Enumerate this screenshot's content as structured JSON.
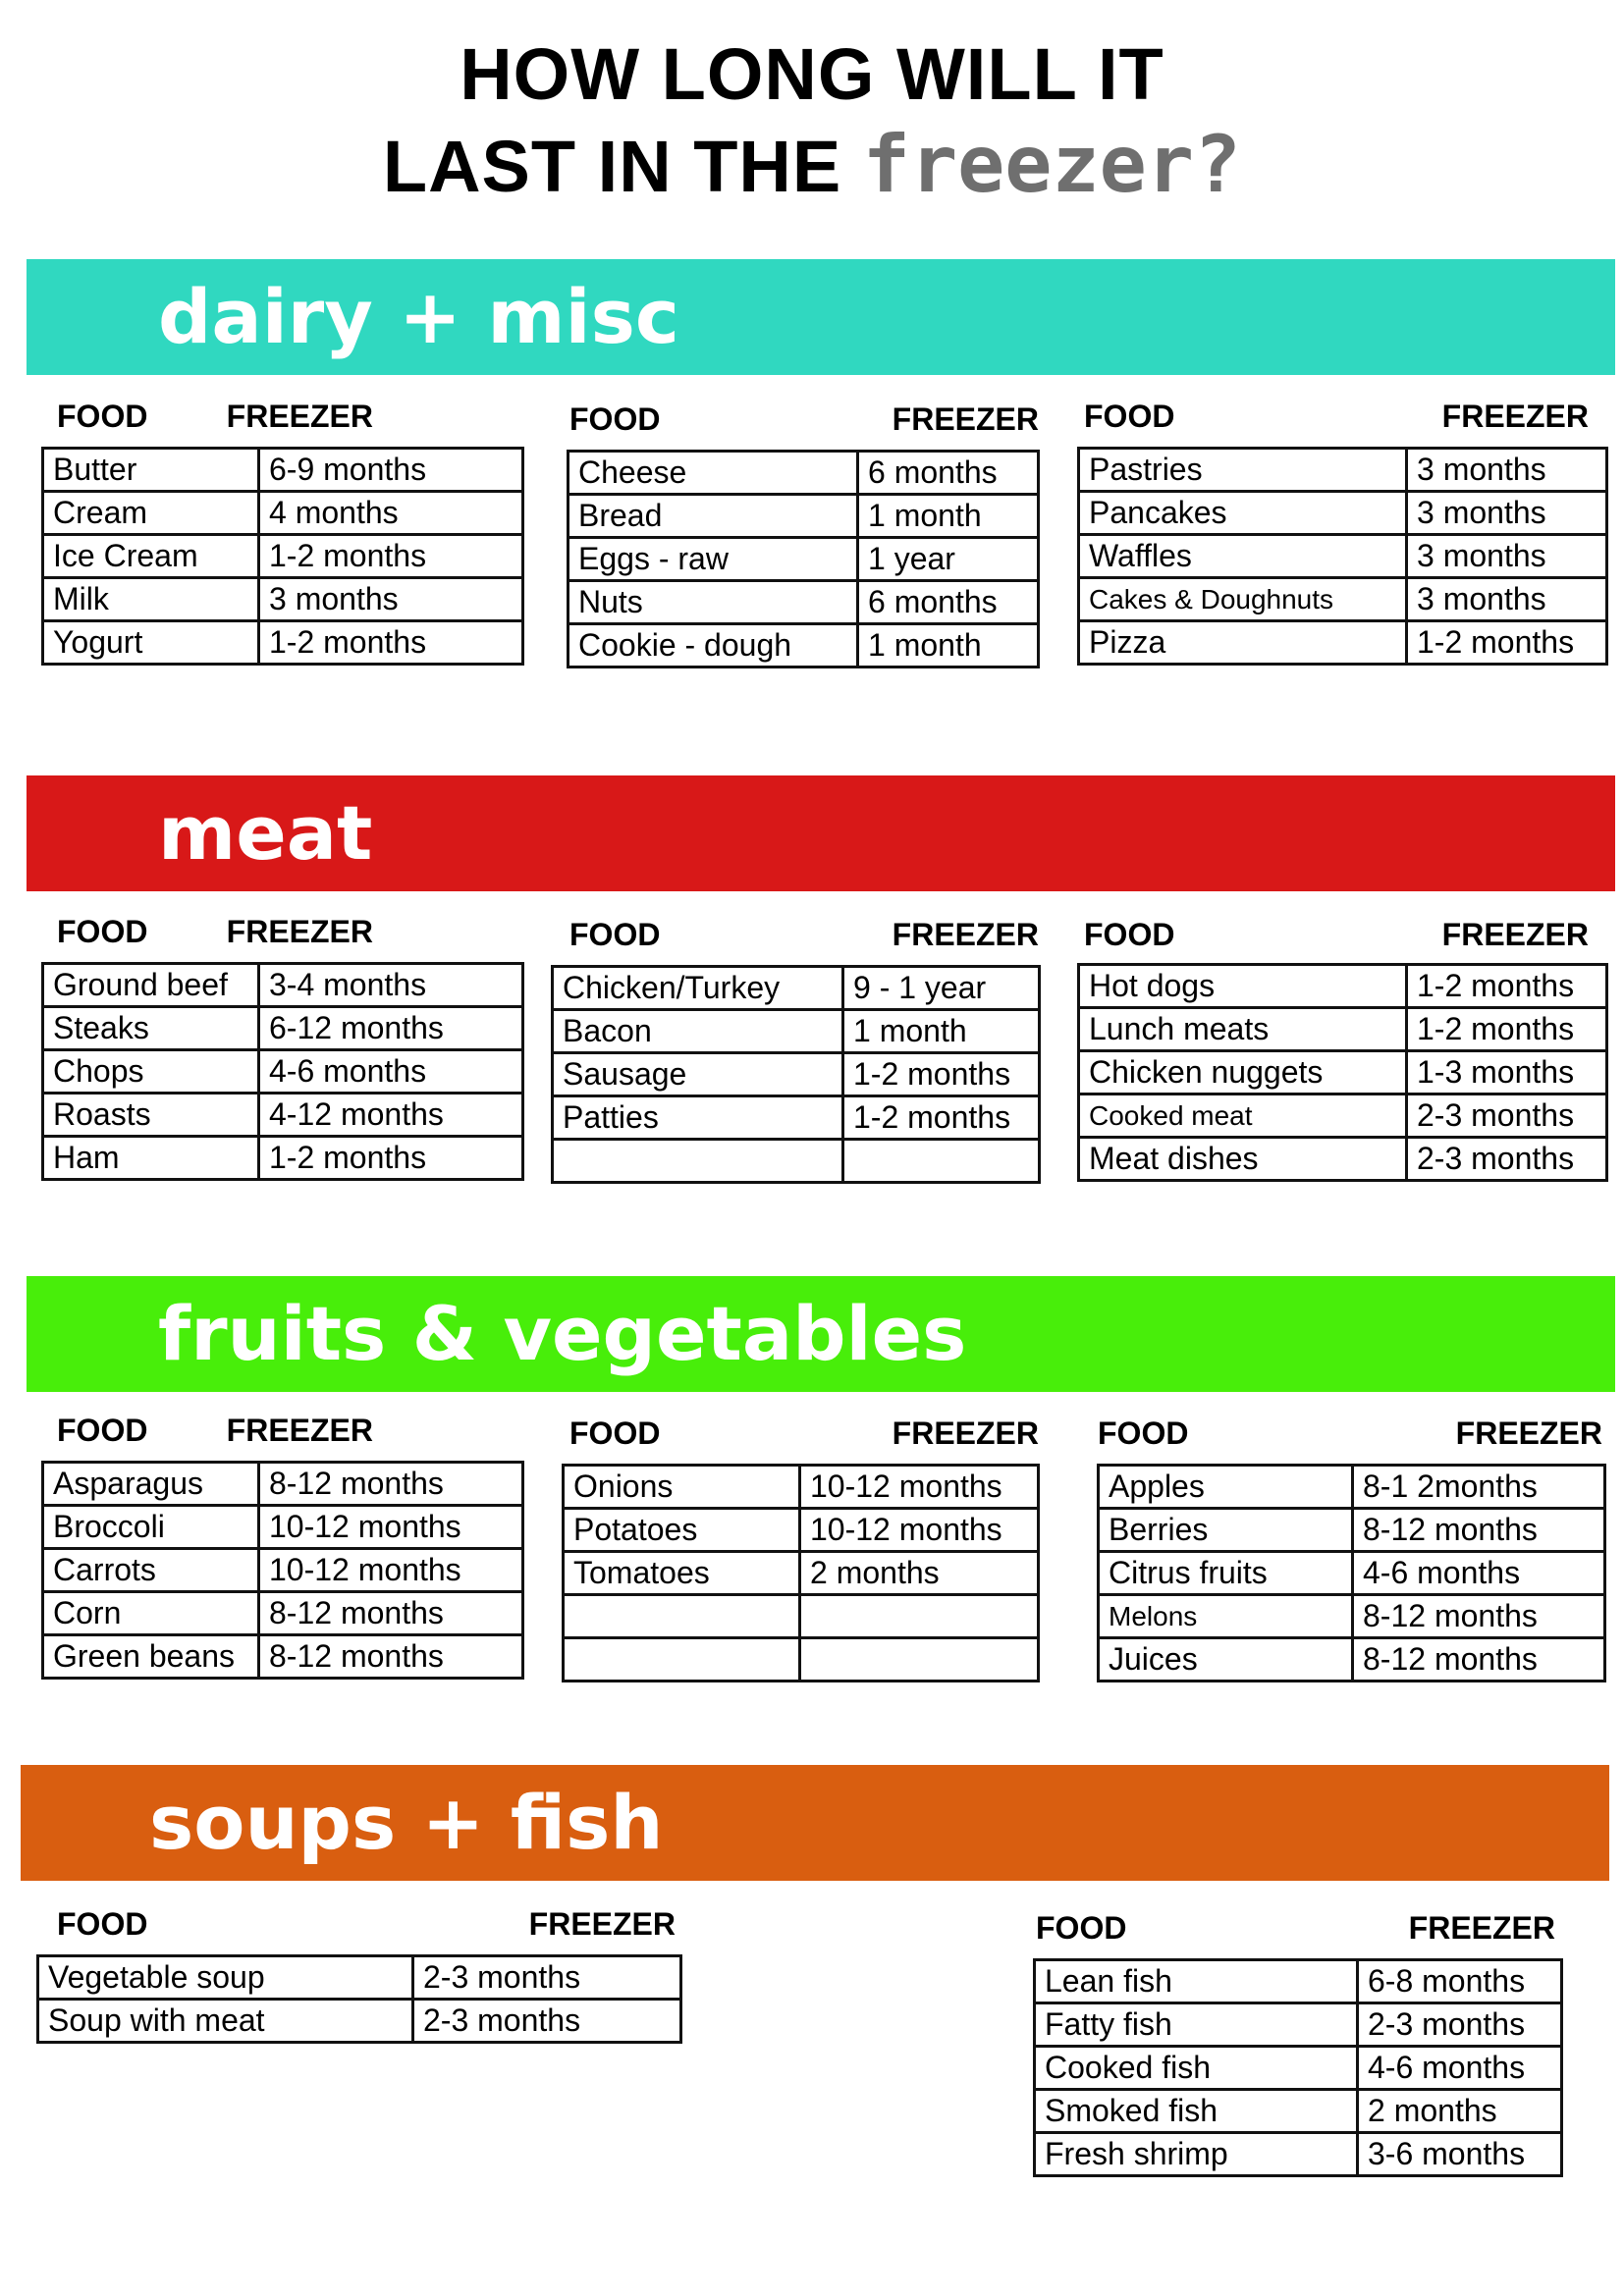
{
  "title": {
    "line1": "HOW LONG WILL IT",
    "line2_prefix": "LAST IN THE",
    "line2_accent": "freezer?"
  },
  "colors": {
    "dairy": "#30d8c0",
    "meat": "#d81818",
    "fruits": "#48ee0a",
    "soups": "#d95e10"
  },
  "sections": [
    {
      "name": "dairy + misc",
      "tables": [
        {
          "food_header": "FOOD",
          "freezer_header": "FREEZER",
          "rows": [
            [
              "Butter",
              "6-9 months"
            ],
            [
              "Cream",
              "4 months"
            ],
            [
              "Ice Cream",
              "1-2 months"
            ],
            [
              "Milk",
              "3 months"
            ],
            [
              "Yogurt",
              "1-2 months"
            ]
          ]
        },
        {
          "food_header": "FOOD",
          "freezer_header": "FREEZER",
          "rows": [
            [
              "Cheese",
              "6 months"
            ],
            [
              "Bread",
              "1 month"
            ],
            [
              "Eggs - raw",
              "1 year"
            ],
            [
              "Nuts",
              "6 months"
            ],
            [
              "Cookie - dough",
              "1 month"
            ]
          ]
        },
        {
          "food_header": "FOOD",
          "freezer_header": "FREEZER",
          "rows": [
            [
              "Pastries",
              "3 months"
            ],
            [
              "Pancakes",
              "3 months"
            ],
            [
              "Waffles",
              "3 months"
            ],
            [
              "Cakes & Doughnuts",
              "3 months"
            ],
            [
              "Pizza",
              "1-2 months"
            ]
          ]
        }
      ]
    },
    {
      "name": "meat",
      "tables": [
        {
          "food_header": "FOOD",
          "freezer_header": "FREEZER",
          "rows": [
            [
              "Ground beef",
              "3-4 months"
            ],
            [
              "Steaks",
              "6-12 months"
            ],
            [
              "Chops",
              "4-6 months"
            ],
            [
              "Roasts",
              "4-12 months"
            ],
            [
              "Ham",
              "1-2 months"
            ]
          ]
        },
        {
          "food_header": "FOOD",
          "freezer_header": "FREEZER",
          "rows": [
            [
              "Chicken/Turkey",
              "9 - 1 year"
            ],
            [
              "Bacon",
              "1 month"
            ],
            [
              "Sausage",
              "1-2 months"
            ],
            [
              "Patties",
              "1-2 months"
            ],
            [
              "",
              ""
            ]
          ]
        },
        {
          "food_header": "FOOD",
          "freezer_header": "FREEZER",
          "rows": [
            [
              "Hot dogs",
              "1-2 months"
            ],
            [
              "Lunch meats",
              "1-2 months"
            ],
            [
              "Chicken nuggets",
              "1-3 months"
            ],
            [
              "Cooked meat",
              "2-3 months"
            ],
            [
              "Meat dishes",
              "2-3 months"
            ]
          ]
        }
      ]
    },
    {
      "name": "fruits & vegetables",
      "tables": [
        {
          "food_header": "FOOD",
          "freezer_header": "FREEZER",
          "rows": [
            [
              "Asparagus",
              "8-12 months"
            ],
            [
              "Broccoli",
              "10-12 months"
            ],
            [
              "Carrots",
              "10-12 months"
            ],
            [
              "Corn",
              "8-12 months"
            ],
            [
              "Green beans",
              "8-12 months"
            ]
          ]
        },
        {
          "food_header": "FOOD",
          "freezer_header": "FREEZER",
          "rows": [
            [
              "Onions",
              "10-12 months"
            ],
            [
              "Potatoes",
              "10-12 months"
            ],
            [
              "Tomatoes",
              "2 months"
            ],
            [
              "",
              ""
            ],
            [
              "",
              ""
            ]
          ]
        },
        {
          "food_header": "FOOD",
          "freezer_header": "FREEZER",
          "rows": [
            [
              "Apples",
              "8-1 2months"
            ],
            [
              "Berries",
              "8-12 months"
            ],
            [
              "Citrus fruits",
              "4-6 months"
            ],
            [
              "Melons",
              "8-12 months"
            ],
            [
              "Juices",
              "8-12 months"
            ]
          ]
        }
      ]
    },
    {
      "name": "soups + fish",
      "tables": [
        {
          "food_header": "FOOD",
          "freezer_header": "FREEZER",
          "rows": [
            [
              "Vegetable soup",
              "2-3 months"
            ],
            [
              "Soup with meat",
              "2-3 months"
            ]
          ]
        },
        {
          "food_header": "FOOD",
          "freezer_header": "FREEZER",
          "rows": [
            [
              "Lean fish",
              "6-8 months"
            ],
            [
              "Fatty fish",
              "2-3 months"
            ],
            [
              "Cooked fish",
              "4-6 months"
            ],
            [
              "Smoked fish",
              "2 months"
            ],
            [
              "Fresh shrimp",
              "3-6 months"
            ]
          ]
        }
      ]
    }
  ]
}
